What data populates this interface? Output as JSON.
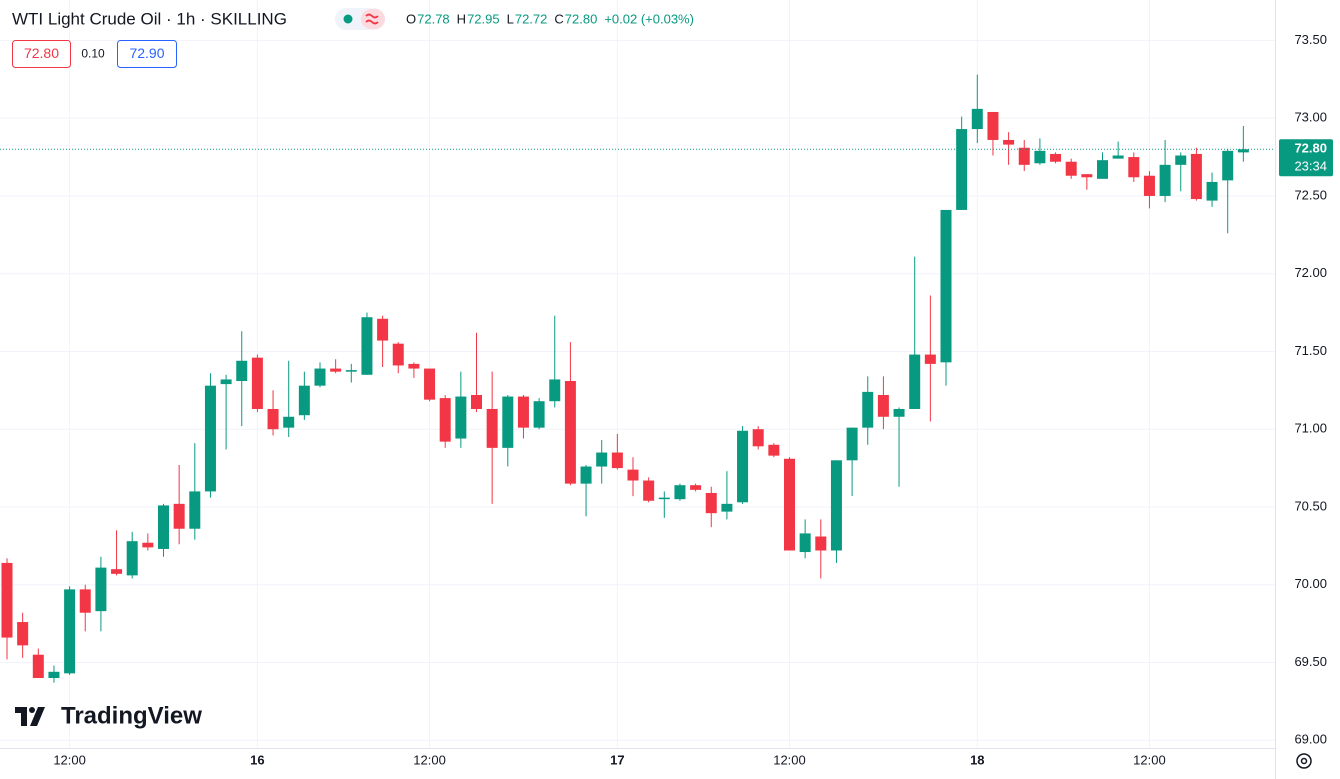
{
  "chart_data": {
    "type": "candlestick",
    "title": "WTI Light Crude Oil · 1h · SKILLING",
    "ohlc_legend": [
      [
        "O",
        "72.78"
      ],
      [
        "H",
        "72.95"
      ],
      [
        "L",
        "72.72"
      ],
      [
        "C",
        "72.80"
      ]
    ],
    "change": "+0.02 (+0.03%)",
    "bid": "72.80",
    "spread": "0.10",
    "ask": "72.90",
    "last_price": {
      "value": 72.8,
      "label": "72.80"
    },
    "countdown": "23:34",
    "brand": "TradingView",
    "up_color": "#089981",
    "down_color": "#f23645",
    "grid": true,
    "ylim": [
      68.95,
      73.76
    ],
    "yticks": [
      {
        "value": 69,
        "label": "69.00"
      },
      {
        "value": 69.5,
        "label": "69.50"
      },
      {
        "value": 70,
        "label": "70.00"
      },
      {
        "value": 70.5,
        "label": "70.50"
      },
      {
        "value": 71,
        "label": "71.00"
      },
      {
        "value": 71.5,
        "label": "71.50"
      },
      {
        "value": 72,
        "label": "72.00"
      },
      {
        "value": 72.5,
        "label": "72.50"
      },
      {
        "value": 73,
        "label": "73.00"
      },
      {
        "value": 73.5,
        "label": "73.50"
      }
    ],
    "categories": [
      null,
      null,
      null,
      null,
      "12:00",
      null,
      null,
      null,
      null,
      null,
      null,
      null,
      null,
      null,
      null,
      null,
      "16",
      null,
      null,
      null,
      null,
      null,
      null,
      null,
      null,
      null,
      null,
      "12:00",
      null,
      null,
      null,
      null,
      null,
      null,
      null,
      null,
      null,
      null,
      null,
      "17",
      null,
      null,
      null,
      null,
      null,
      null,
      null,
      null,
      null,
      null,
      "12:00",
      null,
      null,
      null,
      null,
      null,
      null,
      null,
      null,
      null,
      null,
      null,
      "18",
      null,
      null,
      null,
      null,
      null,
      null,
      null,
      null,
      null,
      null,
      "12:00",
      null,
      null,
      null,
      null,
      null,
      null
    ],
    "open": [
      70.14,
      69.76,
      69.55,
      69.4,
      69.43,
      69.97,
      69.83,
      70.1,
      70.06,
      70.27,
      70.23,
      70.52,
      70.36,
      70.6,
      71.29,
      71.31,
      71.46,
      71.13,
      71.01,
      71.09,
      71.28,
      71.39,
      71.37,
      71.35,
      71.71,
      71.55,
      71.42,
      71.39,
      71.2,
      70.94,
      71.22,
      71.13,
      70.88,
      71.21,
      71.01,
      71.18,
      71.31,
      70.65,
      70.76,
      70.85,
      70.74,
      70.67,
      70.55,
      70.55,
      70.64,
      70.59,
      70.47,
      70.53,
      71.0,
      70.9,
      70.81,
      70.21,
      70.31,
      70.22,
      70.8,
      71.01,
      71.22,
      71.08,
      71.13,
      71.48,
      71.43,
      72.41,
      72.93,
      73.04,
      72.86,
      72.81,
      72.71,
      72.77,
      72.72,
      72.64,
      72.61,
      72.74,
      72.75,
      72.63,
      72.5,
      72.7,
      72.77,
      72.47,
      72.6,
      72.78
    ],
    "high": [
      70.17,
      69.82,
      69.59,
      69.48,
      69.99,
      70.0,
      70.18,
      70.35,
      70.34,
      70.33,
      70.52,
      70.77,
      70.91,
      71.36,
      71.35,
      71.63,
      71.48,
      71.25,
      71.44,
      71.37,
      71.43,
      71.45,
      71.42,
      71.75,
      71.73,
      71.56,
      71.43,
      71.39,
      71.22,
      71.37,
      71.62,
      71.37,
      71.22,
      71.22,
      71.2,
      71.73,
      71.56,
      70.77,
      70.93,
      70.97,
      70.82,
      70.69,
      70.6,
      70.65,
      70.65,
      70.63,
      70.73,
      71.02,
      71.02,
      70.91,
      70.82,
      70.42,
      70.42,
      70.8,
      71.01,
      71.34,
      71.34,
      71.14,
      72.11,
      71.86,
      72.41,
      73.01,
      73.28,
      73.04,
      72.91,
      72.86,
      72.87,
      72.78,
      72.74,
      72.64,
      72.78,
      72.85,
      72.78,
      72.66,
      72.86,
      72.78,
      72.81,
      72.65,
      72.8,
      72.95
    ],
    "low": [
      69.52,
      69.53,
      69.4,
      69.37,
      69.42,
      69.7,
      69.7,
      70.06,
      70.04,
      70.22,
      70.18,
      70.26,
      70.29,
      70.56,
      70.87,
      71.02,
      71.11,
      70.96,
      70.95,
      71.06,
      71.27,
      71.36,
      71.3,
      71.35,
      71.4,
      71.36,
      71.33,
      71.18,
      70.88,
      70.88,
      71.11,
      70.52,
      70.76,
      70.94,
      71.0,
      71.14,
      70.64,
      70.44,
      70.65,
      70.74,
      70.57,
      70.53,
      70.43,
      70.54,
      70.6,
      70.37,
      70.42,
      70.52,
      70.87,
      70.82,
      70.22,
      70.17,
      70.04,
      70.14,
      70.57,
      70.9,
      71.0,
      70.63,
      71.13,
      71.05,
      71.28,
      72.41,
      72.84,
      72.76,
      72.7,
      72.66,
      72.7,
      72.71,
      72.61,
      72.54,
      72.61,
      72.74,
      72.59,
      72.42,
      72.46,
      72.53,
      72.47,
      72.43,
      72.26,
      72.72
    ],
    "close": [
      69.66,
      69.61,
      69.4,
      69.44,
      69.97,
      69.82,
      70.11,
      70.07,
      70.28,
      70.24,
      70.51,
      70.36,
      70.6,
      71.28,
      71.32,
      71.44,
      71.13,
      71.0,
      71.08,
      71.28,
      71.39,
      71.37,
      71.38,
      71.72,
      71.57,
      71.41,
      71.39,
      71.19,
      70.92,
      71.21,
      71.13,
      70.88,
      71.21,
      71.01,
      71.18,
      71.32,
      70.65,
      70.76,
      70.85,
      70.75,
      70.67,
      70.54,
      70.56,
      70.64,
      70.61,
      70.46,
      70.52,
      70.99,
      70.89,
      70.83,
      70.22,
      70.33,
      70.22,
      70.8,
      71.01,
      71.24,
      71.08,
      71.13,
      71.48,
      71.42,
      72.41,
      72.93,
      73.06,
      72.86,
      72.83,
      72.7,
      72.79,
      72.72,
      72.63,
      72.62,
      72.73,
      72.76,
      72.62,
      72.5,
      72.7,
      72.76,
      72.48,
      72.59,
      72.79,
      72.8
    ]
  }
}
